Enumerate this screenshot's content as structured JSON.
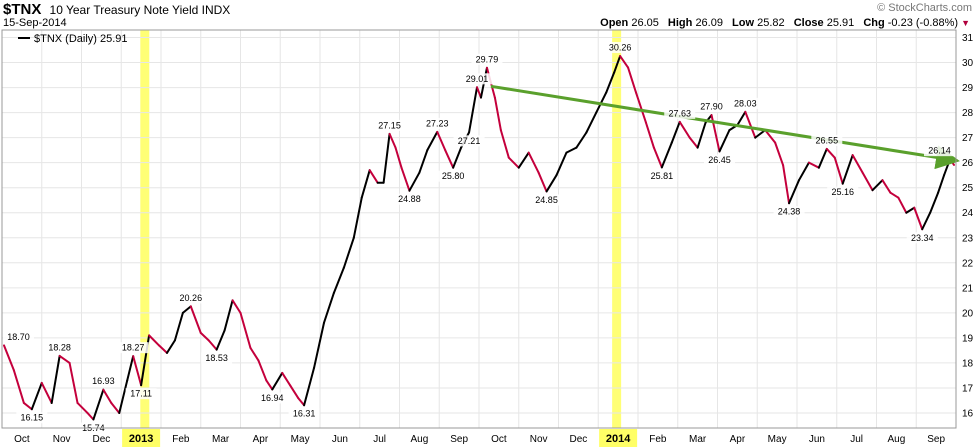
{
  "header": {
    "symbol": "$TNX",
    "description": "10 Year Treasury Note Yield",
    "exchange": "INDX",
    "date": "15-Sep-2014",
    "brand": "© StockCharts.com",
    "open_label": "Open",
    "open": "26.05",
    "high_label": "High",
    "high": "26.09",
    "low_label": "Low",
    "low": "25.82",
    "close_label": "Close",
    "close": "25.91",
    "chg_label": "Chg",
    "chg": "-0.23 (-0.88%)"
  },
  "chart_data": {
    "type": "line",
    "title": "$TNX 10 Year Treasury Note Yield INDX",
    "legend": "$TNX (Daily) 25.91",
    "legend_position": "top-left",
    "grid": true,
    "ylim": [
      15.4,
      31.3
    ],
    "yticks": [
      16,
      17,
      18,
      19,
      20,
      21,
      22,
      23,
      24,
      25,
      26,
      27,
      28,
      29,
      30,
      31
    ],
    "xlim": [
      0,
      24
    ],
    "months": [
      {
        "label": "Oct",
        "x": 0.5
      },
      {
        "label": "Nov",
        "x": 1.5
      },
      {
        "label": "Dec",
        "x": 2.5
      },
      {
        "label": "2013",
        "x": 3.5,
        "year": true
      },
      {
        "label": "Feb",
        "x": 4.5
      },
      {
        "label": "Mar",
        "x": 5.5
      },
      {
        "label": "Apr",
        "x": 6.5
      },
      {
        "label": "May",
        "x": 7.5
      },
      {
        "label": "Jun",
        "x": 8.5
      },
      {
        "label": "Jul",
        "x": 9.5
      },
      {
        "label": "Aug",
        "x": 10.5
      },
      {
        "label": "Sep",
        "x": 11.5
      },
      {
        "label": "Oct",
        "x": 12.5
      },
      {
        "label": "Nov",
        "x": 13.5
      },
      {
        "label": "Dec",
        "x": 14.5
      },
      {
        "label": "2014",
        "x": 15.5,
        "year": true
      },
      {
        "label": "Feb",
        "x": 16.5
      },
      {
        "label": "Mar",
        "x": 17.5
      },
      {
        "label": "Apr",
        "x": 18.5
      },
      {
        "label": "May",
        "x": 19.5
      },
      {
        "label": "Jun",
        "x": 20.5
      },
      {
        "label": "Jul",
        "x": 21.5
      },
      {
        "label": "Aug",
        "x": 22.5
      },
      {
        "label": "Sep",
        "x": 23.5
      }
    ],
    "highlights": [
      3.58,
      15.45
    ],
    "series": [
      {
        "values": [
          [
            0.05,
            18.7
          ],
          [
            0.3,
            17.7
          ],
          [
            0.55,
            16.4
          ],
          [
            0.75,
            16.15
          ],
          [
            1.0,
            17.2
          ],
          [
            1.25,
            16.4
          ],
          [
            1.45,
            18.28
          ],
          [
            1.7,
            18.0
          ],
          [
            1.9,
            16.4
          ],
          [
            2.15,
            16.0
          ],
          [
            2.3,
            15.74
          ],
          [
            2.55,
            16.93
          ],
          [
            2.75,
            16.4
          ],
          [
            2.95,
            16.0
          ],
          [
            3.15,
            17.3
          ],
          [
            3.3,
            18.27
          ],
          [
            3.5,
            17.11
          ],
          [
            3.7,
            19.1
          ],
          [
            3.95,
            18.7
          ],
          [
            4.15,
            18.4
          ],
          [
            4.35,
            18.9
          ],
          [
            4.55,
            20.0
          ],
          [
            4.75,
            20.26
          ],
          [
            5.0,
            19.2
          ],
          [
            5.2,
            18.9
          ],
          [
            5.4,
            18.53
          ],
          [
            5.6,
            19.3
          ],
          [
            5.8,
            20.5
          ],
          [
            6.0,
            20.0
          ],
          [
            6.25,
            18.6
          ],
          [
            6.45,
            18.1
          ],
          [
            6.65,
            17.3
          ],
          [
            6.8,
            16.94
          ],
          [
            7.05,
            17.6
          ],
          [
            7.25,
            17.1
          ],
          [
            7.45,
            16.6
          ],
          [
            7.6,
            16.31
          ],
          [
            7.85,
            17.8
          ],
          [
            8.1,
            19.6
          ],
          [
            8.35,
            20.8
          ],
          [
            8.6,
            21.8
          ],
          [
            8.85,
            23.0
          ],
          [
            9.05,
            24.6
          ],
          [
            9.25,
            25.7
          ],
          [
            9.45,
            25.2
          ],
          [
            9.6,
            25.2
          ],
          [
            9.75,
            27.15
          ],
          [
            9.9,
            26.6
          ],
          [
            10.05,
            25.8
          ],
          [
            10.25,
            24.88
          ],
          [
            10.5,
            25.6
          ],
          [
            10.7,
            26.5
          ],
          [
            10.95,
            27.23
          ],
          [
            11.15,
            26.5
          ],
          [
            11.35,
            25.8
          ],
          [
            11.55,
            26.6
          ],
          [
            11.75,
            27.21
          ],
          [
            11.95,
            29.01
          ],
          [
            12.05,
            28.6
          ],
          [
            12.2,
            29.79
          ],
          [
            12.4,
            28.6
          ],
          [
            12.55,
            27.3
          ],
          [
            12.75,
            26.2
          ],
          [
            13.0,
            25.8
          ],
          [
            13.25,
            26.4
          ],
          [
            13.5,
            25.6
          ],
          [
            13.7,
            24.85
          ],
          [
            13.95,
            25.5
          ],
          [
            14.2,
            26.4
          ],
          [
            14.45,
            26.6
          ],
          [
            14.7,
            27.2
          ],
          [
            14.95,
            28.0
          ],
          [
            15.2,
            28.8
          ],
          [
            15.4,
            29.6
          ],
          [
            15.55,
            30.26
          ],
          [
            15.75,
            29.8
          ],
          [
            15.95,
            28.8
          ],
          [
            16.2,
            27.6
          ],
          [
            16.4,
            26.6
          ],
          [
            16.6,
            25.81
          ],
          [
            16.85,
            26.8
          ],
          [
            17.05,
            27.63
          ],
          [
            17.3,
            27.0
          ],
          [
            17.5,
            26.6
          ],
          [
            17.7,
            27.6
          ],
          [
            17.85,
            27.9
          ],
          [
            18.05,
            26.45
          ],
          [
            18.3,
            27.3
          ],
          [
            18.5,
            27.5
          ],
          [
            18.7,
            28.03
          ],
          [
            18.95,
            27.0
          ],
          [
            19.2,
            27.3
          ],
          [
            19.45,
            26.8
          ],
          [
            19.65,
            25.9
          ],
          [
            19.8,
            24.38
          ],
          [
            20.05,
            25.3
          ],
          [
            20.3,
            26.0
          ],
          [
            20.55,
            25.8
          ],
          [
            20.75,
            26.55
          ],
          [
            20.95,
            26.2
          ],
          [
            21.15,
            25.16
          ],
          [
            21.4,
            26.3
          ],
          [
            21.65,
            25.6
          ],
          [
            21.9,
            24.9
          ],
          [
            22.15,
            25.3
          ],
          [
            22.35,
            24.8
          ],
          [
            22.55,
            24.6
          ],
          [
            22.75,
            24.0
          ],
          [
            22.95,
            24.2
          ],
          [
            23.15,
            23.34
          ],
          [
            23.35,
            24.0
          ],
          [
            23.55,
            24.8
          ],
          [
            23.7,
            25.5
          ],
          [
            23.85,
            26.14
          ],
          [
            23.95,
            25.91
          ]
        ]
      }
    ],
    "data_labels": [
      {
        "text": "18.70",
        "x": 0.05,
        "y": 18.7,
        "pos": "above"
      },
      {
        "text": "16.15",
        "x": 0.75,
        "y": 16.15,
        "pos": "below"
      },
      {
        "text": "18.28",
        "x": 1.45,
        "y": 18.28,
        "pos": "above"
      },
      {
        "text": "15.74",
        "x": 2.3,
        "y": 15.74,
        "pos": "below"
      },
      {
        "text": "16.93",
        "x": 2.55,
        "y": 16.93,
        "pos": "above"
      },
      {
        "text": "18.27",
        "x": 3.3,
        "y": 18.27,
        "pos": "above"
      },
      {
        "text": "17.11",
        "x": 3.5,
        "y": 17.11,
        "pos": "below"
      },
      {
        "text": "20.26",
        "x": 4.75,
        "y": 20.26,
        "pos": "above"
      },
      {
        "text": "18.53",
        "x": 5.4,
        "y": 18.53,
        "pos": "below"
      },
      {
        "text": "16.94",
        "x": 6.8,
        "y": 16.94,
        "pos": "below"
      },
      {
        "text": "16.31",
        "x": 7.6,
        "y": 16.31,
        "pos": "below"
      },
      {
        "text": "27.15",
        "x": 9.75,
        "y": 27.15,
        "pos": "above"
      },
      {
        "text": "24.88",
        "x": 10.25,
        "y": 24.88,
        "pos": "below"
      },
      {
        "text": "27.23",
        "x": 10.95,
        "y": 27.23,
        "pos": "above"
      },
      {
        "text": "25.80",
        "x": 11.35,
        "y": 25.8,
        "pos": "below"
      },
      {
        "text": "27.21",
        "x": 11.75,
        "y": 27.21,
        "pos": "below"
      },
      {
        "text": "29.01",
        "x": 11.95,
        "y": 29.01,
        "pos": "above"
      },
      {
        "text": "29.79",
        "x": 12.2,
        "y": 29.79,
        "pos": "above"
      },
      {
        "text": "24.85",
        "x": 13.7,
        "y": 24.85,
        "pos": "below"
      },
      {
        "text": "30.26",
        "x": 15.55,
        "y": 30.26,
        "pos": "above"
      },
      {
        "text": "25.81",
        "x": 16.6,
        "y": 25.81,
        "pos": "below"
      },
      {
        "text": "27.63",
        "x": 17.05,
        "y": 27.63,
        "pos": "above"
      },
      {
        "text": "27.90",
        "x": 17.85,
        "y": 27.9,
        "pos": "above"
      },
      {
        "text": "26.45",
        "x": 18.05,
        "y": 26.45,
        "pos": "below"
      },
      {
        "text": "28.03",
        "x": 18.7,
        "y": 28.03,
        "pos": "above"
      },
      {
        "text": "24.38",
        "x": 19.8,
        "y": 24.38,
        "pos": "below"
      },
      {
        "text": "26.55",
        "x": 20.75,
        "y": 26.55,
        "pos": "above"
      },
      {
        "text": "25.16",
        "x": 21.15,
        "y": 25.16,
        "pos": "below"
      },
      {
        "text": "23.34",
        "x": 23.15,
        "y": 23.34,
        "pos": "below"
      },
      {
        "text": "26.14",
        "x": 23.85,
        "y": 26.14,
        "pos": "above"
      }
    ],
    "trendline": {
      "from": [
        12.3,
        29.05
      ],
      "to": [
        23.95,
        26.1
      ]
    },
    "colors": {
      "up": "#000000",
      "down": "#c4003c",
      "trend": "#5aa02c",
      "highlight": "#ffff66",
      "grid": "#e6e6e6",
      "frame": "#999999"
    }
  }
}
